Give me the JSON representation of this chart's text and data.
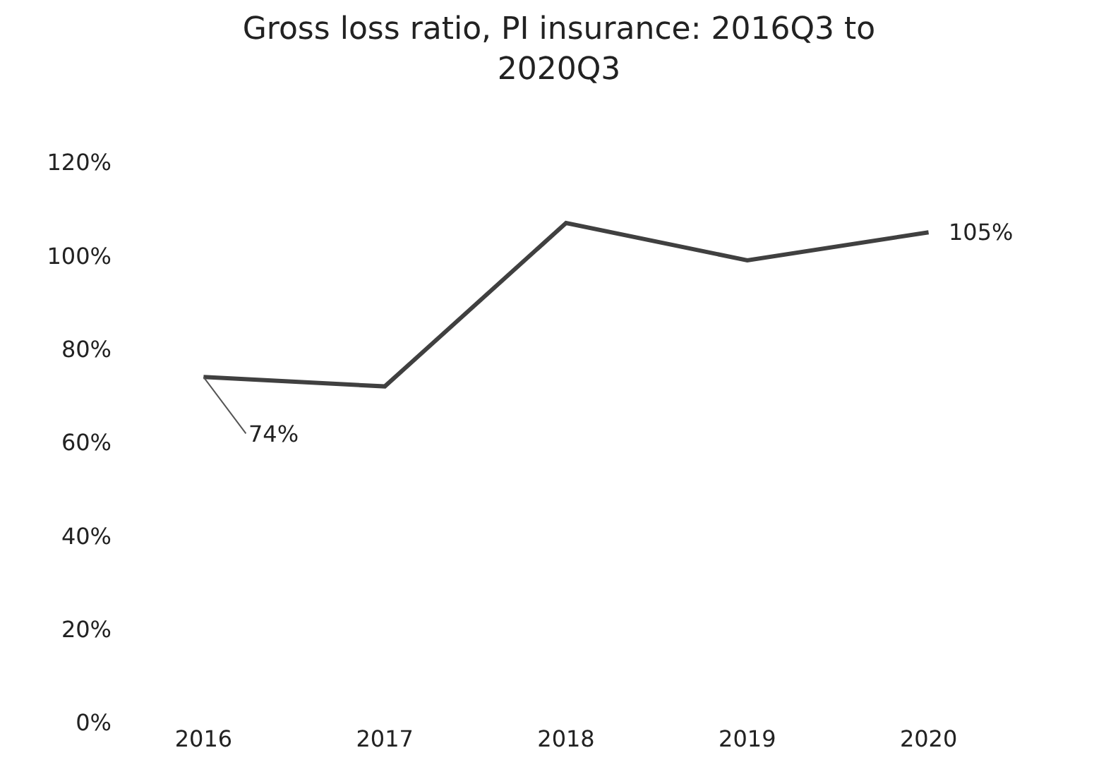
{
  "chart_data": {
    "type": "line",
    "title": "Gross loss ratio, PI insurance: 2016Q3 to 2020Q3",
    "categories": [
      "2016",
      "2017",
      "2018",
      "2019",
      "2020"
    ],
    "series": [
      {
        "color": "#404040",
        "values": [
          74,
          72,
          107,
          99,
          105
        ],
        "value_labels": [
          "74%",
          null,
          null,
          null,
          "105%"
        ]
      }
    ],
    "ylim": [
      0,
      120
    ],
    "yticks": [
      {
        "value": 0,
        "label": "0%"
      },
      {
        "value": 20,
        "label": "20%"
      },
      {
        "value": 40,
        "label": "40%"
      },
      {
        "value": 60,
        "label": "60%"
      },
      {
        "value": 80,
        "label": "80%"
      },
      {
        "value": 100,
        "label": "100%"
      },
      {
        "value": 120,
        "label": "120%"
      }
    ],
    "marker": "none",
    "line_style": "solid"
  }
}
